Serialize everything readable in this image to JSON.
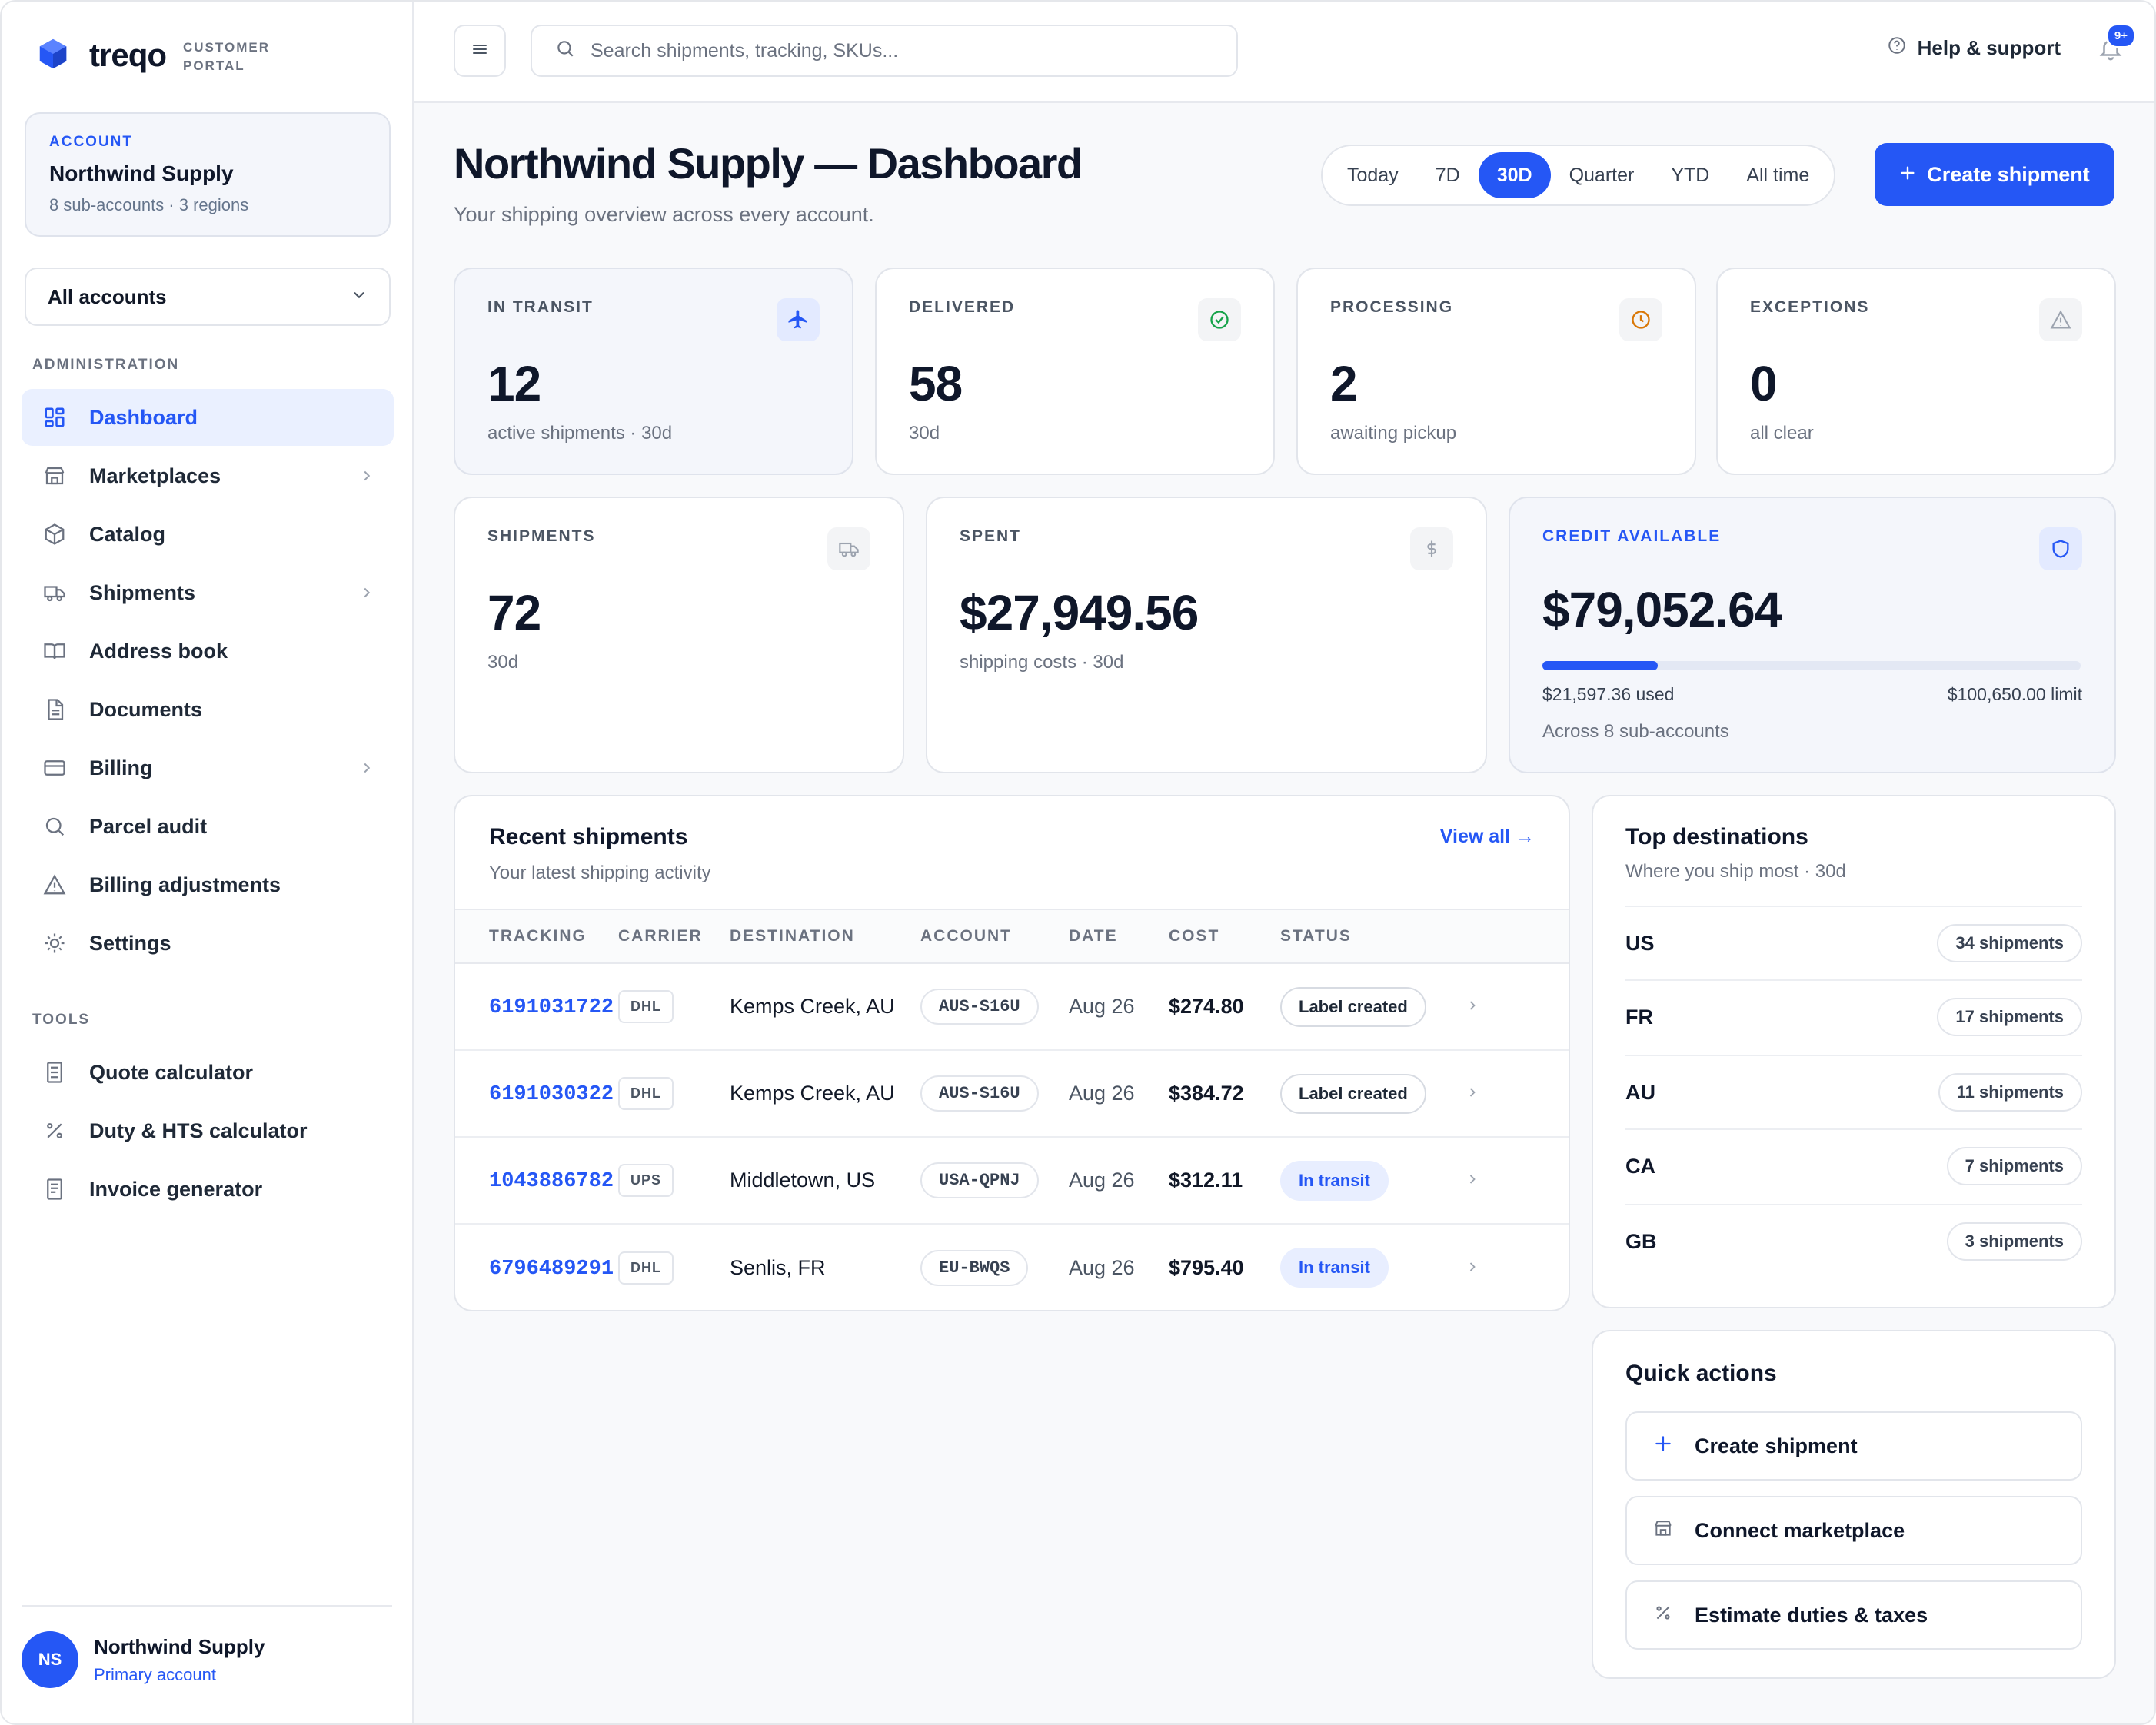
{
  "brand": {
    "name": "treqo",
    "sub_line1": "CUSTOMER",
    "sub_line2": "PORTAL"
  },
  "account": {
    "label": "ACCOUNT",
    "name": "Northwind Supply",
    "meta": "8 sub-accounts · 3 regions"
  },
  "account_select": {
    "value": "All accounts"
  },
  "nav": {
    "admin_label": "ADMINISTRATION",
    "items": [
      {
        "label": "Dashboard",
        "icon": "grid-icon",
        "active": true,
        "chevron": false
      },
      {
        "label": "Marketplaces",
        "icon": "store-icon",
        "chevron": true
      },
      {
        "label": "Catalog",
        "icon": "box-icon",
        "chevron": false
      },
      {
        "label": "Shipments",
        "icon": "truck-icon",
        "chevron": true
      },
      {
        "label": "Address book",
        "icon": "book-icon",
        "chevron": false
      },
      {
        "label": "Documents",
        "icon": "document-icon",
        "chevron": false
      },
      {
        "label": "Billing",
        "icon": "credit-card-icon",
        "chevron": true
      },
      {
        "label": "Parcel audit",
        "icon": "search-icon",
        "chevron": false
      },
      {
        "label": "Billing adjustments",
        "icon": "warning-icon",
        "chevron": false
      },
      {
        "label": "Settings",
        "icon": "sun-gear-icon",
        "chevron": false
      }
    ],
    "tools_label": "TOOLS",
    "tools": [
      {
        "label": "Quote calculator",
        "icon": "calculator-icon"
      },
      {
        "label": "Duty & HTS calculator",
        "icon": "percent-icon"
      },
      {
        "label": "Invoice generator",
        "icon": "receipt-icon"
      }
    ]
  },
  "user": {
    "initials": "NS",
    "name": "Northwind Supply",
    "role": "Primary account"
  },
  "topbar": {
    "search_placeholder": "Search shipments, tracking, SKUs...",
    "help": "Help & support",
    "notif_badge": "9+"
  },
  "header": {
    "title": "Northwind Supply — Dashboard",
    "subtitle": "Your shipping overview across every account.",
    "ranges": [
      "Today",
      "7D",
      "30D",
      "Quarter",
      "YTD",
      "All time"
    ],
    "active_range": "30D",
    "create_label": "Create shipment"
  },
  "stats": [
    {
      "label": "IN TRANSIT",
      "value": "12",
      "sub": "active shipments · 30d",
      "icon": "plane-icon"
    },
    {
      "label": "DELIVERED",
      "value": "58",
      "sub": "30d",
      "icon": "check-circle-icon"
    },
    {
      "label": "PROCESSING",
      "value": "2",
      "sub": "awaiting pickup",
      "icon": "clock-icon"
    },
    {
      "label": "EXCEPTIONS",
      "value": "0",
      "sub": "all clear",
      "icon": "warning-icon"
    }
  ],
  "stats2": [
    {
      "label": "SHIPMENTS",
      "value": "72",
      "sub": "30d",
      "icon": "truck-icon"
    },
    {
      "label": "SPENT",
      "value": "$27,949.56",
      "sub": "shipping costs · 30d",
      "icon": "dollar-icon"
    }
  ],
  "credit": {
    "label": "CREDIT AVAILABLE",
    "value": "$79,052.64",
    "used": "$21,597.36 used",
    "limit": "$100,650.00 limit",
    "used_fraction": 0.2146,
    "note": "Across 8 sub-accounts",
    "icon": "shield-icon"
  },
  "recent": {
    "title": "Recent shipments",
    "subtitle": "Your latest shipping activity",
    "view_all": "View all →",
    "columns": [
      "TRACKING",
      "CARRIER",
      "DESTINATION",
      "ACCOUNT",
      "DATE",
      "COST",
      "STATUS"
    ],
    "rows": [
      {
        "tracking": "6191031722",
        "carrier": "DHL",
        "destination": "Kemps Creek, AU",
        "account": "AUS-S16U",
        "date": "Aug 26",
        "cost": "$274.80",
        "status": "Label created",
        "status_type": "label"
      },
      {
        "tracking": "6191030322",
        "carrier": "DHL",
        "destination": "Kemps Creek, AU",
        "account": "AUS-S16U",
        "date": "Aug 26",
        "cost": "$384.72",
        "status": "Label created",
        "status_type": "label"
      },
      {
        "tracking": "1043886782",
        "carrier": "UPS",
        "destination": "Middletown, US",
        "account": "USA-QPNJ",
        "date": "Aug 26",
        "cost": "$312.11",
        "status": "In transit",
        "status_type": "transit"
      },
      {
        "tracking": "6796489291",
        "carrier": "DHL",
        "destination": "Senlis, FR",
        "account": "EU-BWQS",
        "date": "Aug 26",
        "cost": "$795.40",
        "status": "In transit",
        "status_type": "transit"
      }
    ]
  },
  "destinations": {
    "title": "Top destinations",
    "subtitle": "Where you ship most · 30d",
    "rows": [
      {
        "code": "US",
        "count": "34 shipments"
      },
      {
        "code": "FR",
        "count": "17 shipments"
      },
      {
        "code": "AU",
        "count": "11 shipments"
      },
      {
        "code": "CA",
        "count": "7 shipments"
      },
      {
        "code": "GB",
        "count": "3 shipments"
      }
    ]
  },
  "quick_actions": {
    "title": "Quick actions",
    "items": [
      {
        "label": "Create shipment",
        "icon": "plus-icon"
      },
      {
        "label": "Connect marketplace",
        "icon": "store-icon"
      },
      {
        "label": "Estimate duties & taxes",
        "icon": "percent-icon"
      }
    ]
  },
  "colors": {
    "accent": "#2557f5",
    "success": "#16a34a",
    "warning": "#d97706",
    "muted": "#6b7280"
  }
}
